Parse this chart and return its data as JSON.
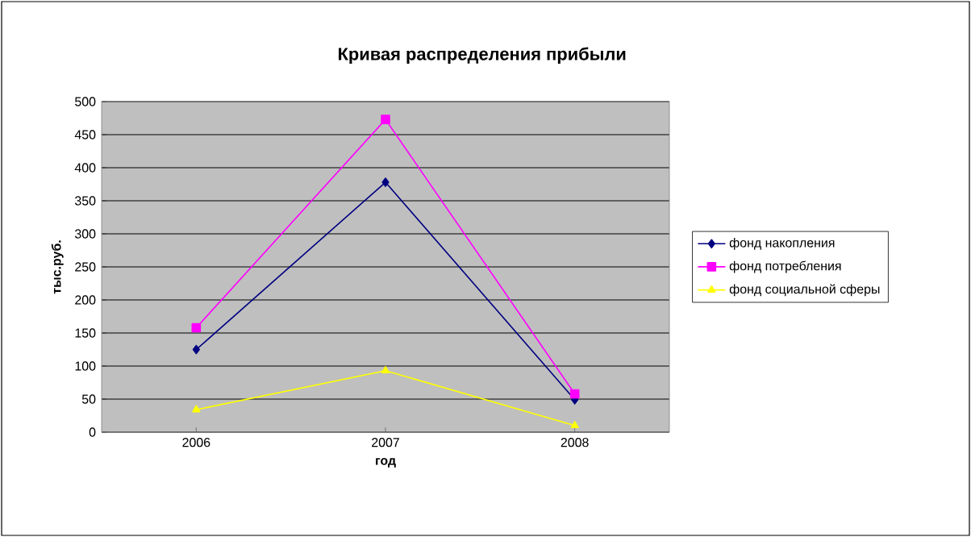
{
  "chart_data": {
    "type": "line",
    "title": "Кривая распределения прибыли",
    "xlabel": "год",
    "ylabel": "тыс.руб.",
    "categories": [
      "2006",
      "2007",
      "2008"
    ],
    "series": [
      {
        "name": "фонд накопления",
        "color": "#000080",
        "marker": "diamond",
        "values": [
          125,
          378,
          49
        ]
      },
      {
        "name": "фонд потребления",
        "color": "#ff00ff",
        "marker": "square",
        "values": [
          158,
          473,
          58
        ]
      },
      {
        "name": "фонд социальной сферы",
        "color": "#ffff00",
        "marker": "triangle",
        "values": [
          34,
          93,
          10
        ]
      }
    ],
    "ylim": [
      0,
      500
    ],
    "yticks": [
      0,
      50,
      100,
      150,
      200,
      250,
      300,
      350,
      400,
      450,
      500
    ],
    "grid": "y",
    "legend": "right",
    "line_style": "solid"
  }
}
